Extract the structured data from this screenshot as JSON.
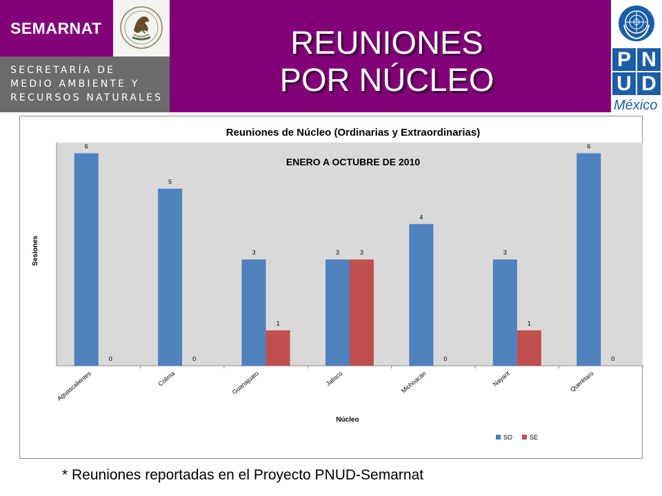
{
  "header": {
    "org_short": "SEMARNAT",
    "org_lines": [
      "SECRETARÍA DE",
      "MEDIO AMBIENTE Y",
      "RECURSOS NATURALES"
    ],
    "title_lines": [
      "REUNIONES",
      "POR NÚCLEO"
    ],
    "pnud_letters": [
      "P",
      "N",
      "U",
      "D"
    ],
    "pnud_country": "México",
    "colors": {
      "purple": "#820077",
      "gray": "#6b6b6b",
      "un_blue": "#1b5ea8"
    }
  },
  "chart_data": {
    "type": "bar",
    "title": "Reuniones de Núcleo (Ordinarias y Extraordinarias)",
    "subtitle": "ENERO A  OCTUBRE DE 2010",
    "xlabel": "Núcleo",
    "ylabel": "Sesiones",
    "categories": [
      "Aguascalientes",
      "Colima",
      "Guanajuato",
      "Jalisco",
      "Michoacán",
      "Nayarit",
      "Querétaro"
    ],
    "series": [
      {
        "name": "SO",
        "color": "#4f81bd",
        "values": [
          6,
          5,
          3,
          3,
          4,
          3,
          6
        ]
      },
      {
        "name": "SE",
        "color": "#c0504d",
        "values": [
          0,
          0,
          1,
          3,
          0,
          1,
          0
        ]
      }
    ],
    "ylim": [
      0,
      6.3
    ],
    "grid": false,
    "legend": "bottom-right",
    "data_labels": true
  },
  "footnote": "* Reuniones reportadas en el Proyecto PNUD-Semarnat"
}
